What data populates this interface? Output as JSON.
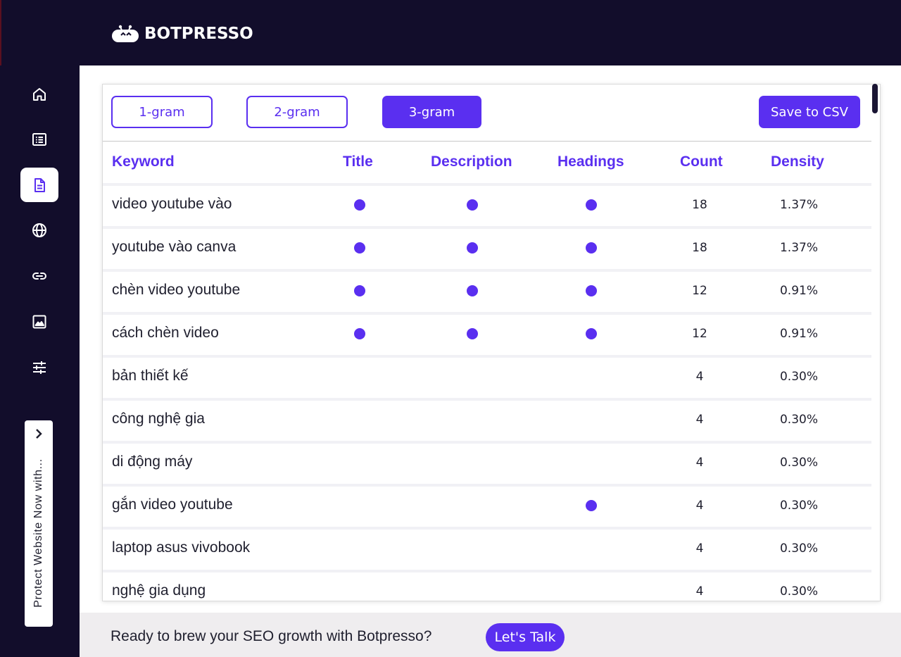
{
  "brand": {
    "name": "BOTPRESSO"
  },
  "nav": [
    {
      "icon": "home-icon",
      "active": false
    },
    {
      "icon": "list-icon",
      "active": false
    },
    {
      "icon": "document-icon",
      "active": true
    },
    {
      "icon": "globe-icon",
      "active": false
    },
    {
      "icon": "link-icon",
      "active": false
    },
    {
      "icon": "image-icon",
      "active": false
    },
    {
      "icon": "sliders-icon",
      "active": false
    }
  ],
  "promo": {
    "text": "Protect Website Now with..."
  },
  "tabs": {
    "one": "1-gram",
    "two": "2-gram",
    "three": "3-gram",
    "active": "3-gram"
  },
  "actions": {
    "save_csv": "Save to CSV"
  },
  "table": {
    "headers": {
      "keyword": "Keyword",
      "title": "Title",
      "description": "Description",
      "headings": "Headings",
      "count": "Count",
      "density": "Density"
    },
    "rows": [
      {
        "keyword": "video youtube vào",
        "title": true,
        "description": true,
        "headings": true,
        "count": "18",
        "density": "1.37%"
      },
      {
        "keyword": "youtube vào canva",
        "title": true,
        "description": true,
        "headings": true,
        "count": "18",
        "density": "1.37%"
      },
      {
        "keyword": "chèn video youtube",
        "title": true,
        "description": true,
        "headings": true,
        "count": "12",
        "density": "0.91%"
      },
      {
        "keyword": "cách chèn video",
        "title": true,
        "description": true,
        "headings": true,
        "count": "12",
        "density": "0.91%"
      },
      {
        "keyword": "bản thiết kế",
        "title": false,
        "description": false,
        "headings": false,
        "count": "4",
        "density": "0.30%"
      },
      {
        "keyword": "công nghệ gia",
        "title": false,
        "description": false,
        "headings": false,
        "count": "4",
        "density": "0.30%"
      },
      {
        "keyword": "di động máy",
        "title": false,
        "description": false,
        "headings": false,
        "count": "4",
        "density": "0.30%"
      },
      {
        "keyword": "gắn video youtube",
        "title": false,
        "description": false,
        "headings": true,
        "count": "4",
        "density": "0.30%"
      },
      {
        "keyword": "laptop asus vivobook",
        "title": false,
        "description": false,
        "headings": false,
        "count": "4",
        "density": "0.30%"
      },
      {
        "keyword": "nghệ gia dụng",
        "title": false,
        "description": false,
        "headings": false,
        "count": "4",
        "density": "0.30%"
      }
    ]
  },
  "footer": {
    "text": "Ready to brew your SEO growth with Botpresso?",
    "cta": "Let's Talk"
  },
  "colors": {
    "accent": "#5a2ff0",
    "dark": "#120d2b"
  }
}
